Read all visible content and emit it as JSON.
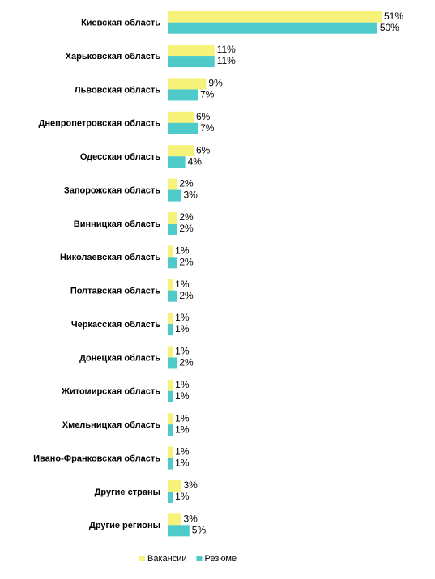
{
  "chart_data": {
    "type": "bar",
    "orientation": "horizontal",
    "categories": [
      "Киевская область",
      "Харьковская область",
      "Львовская область",
      "Днепропетровская область",
      "Одесская область",
      "Запорожская область",
      "Винницкая область",
      "Николаевская область",
      "Полтавская область",
      "Черкасская область",
      "Донецкая область",
      "Житомирская область",
      "Хмельницкая область",
      "Ивано-Франковская область",
      "Другие страны",
      "Другие регионы"
    ],
    "series": [
      {
        "name": "Вакансии",
        "color": "#f7f27a",
        "values": [
          51,
          11,
          9,
          6,
          6,
          2,
          2,
          1,
          1,
          1,
          1,
          1,
          1,
          1,
          3,
          3
        ],
        "value_labels": [
          "51%",
          "11%",
          "9%",
          "6%",
          "6%",
          "2%",
          "2%",
          "1%",
          "1%",
          "1%",
          "1%",
          "1%",
          "1%",
          "1%",
          "3%",
          "3%"
        ]
      },
      {
        "name": "Резюме",
        "color": "#4ecaca",
        "values": [
          50,
          11,
          7,
          7,
          4,
          3,
          2,
          2,
          2,
          1,
          2,
          1,
          1,
          1,
          1,
          5
        ],
        "value_labels": [
          "50%",
          "11%",
          "7%",
          "7%",
          "4%",
          "3%",
          "2%",
          "2%",
          "2%",
          "1%",
          "2%",
          "1%",
          "1%",
          "1%",
          "1%",
          "5%"
        ]
      }
    ],
    "legend": "bottom"
  }
}
